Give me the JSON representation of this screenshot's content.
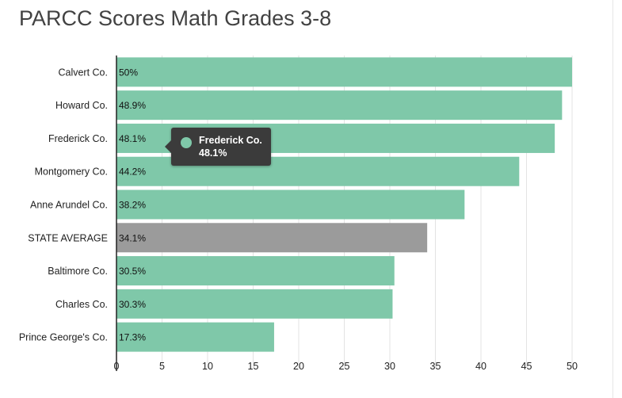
{
  "title": "PARCC Scores Math Grades 3-8",
  "colors": {
    "bar": "#7fc8a9",
    "highlight": "#9b9b9b",
    "grid": "#e3e3e3",
    "axis": "#222222"
  },
  "tooltip": {
    "name": "Frederick Co.",
    "value": "48.1%"
  },
  "chart_data": {
    "type": "bar",
    "orientation": "horizontal",
    "title": "PARCC Scores Math Grades 3-8",
    "categories": [
      "Calvert Co.",
      "Howard Co.",
      "Frederick Co.",
      "Montgomery Co.",
      "Anne Arundel Co.",
      "STATE AVERAGE",
      "Baltimore Co.",
      "Charles Co.",
      "Prince George's Co."
    ],
    "values": [
      50,
      48.9,
      48.1,
      44.2,
      38.2,
      34.1,
      30.5,
      30.3,
      17.3
    ],
    "value_labels": [
      "50%",
      "48.9%",
      "48.1%",
      "44.2%",
      "38.2%",
      "34.1%",
      "30.5%",
      "30.3%",
      "17.3%"
    ],
    "highlight_category": "STATE AVERAGE",
    "xticks": [
      0,
      5,
      10,
      15,
      20,
      25,
      30,
      35,
      40,
      45,
      50
    ],
    "xlim": [
      0,
      50
    ],
    "grid": true,
    "legend": "none"
  }
}
